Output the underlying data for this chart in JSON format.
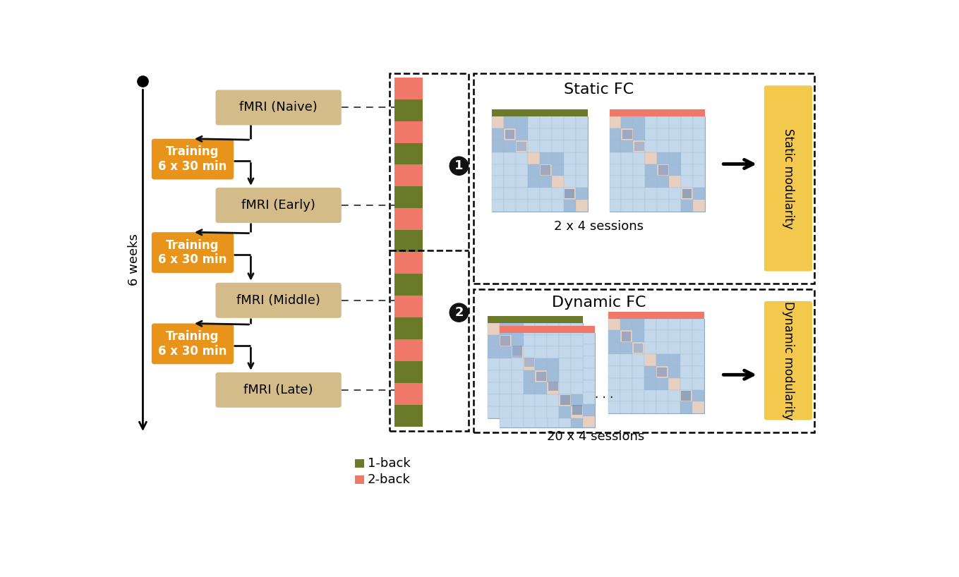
{
  "bg_color": "#ffffff",
  "fmri_box_color": "#d4bc8a",
  "training_box_color": "#e8941a",
  "modularity_box_color": "#f2c94c",
  "fmri_labels": [
    "fMRI (Naive)",
    "fMRI (Early)",
    "fMRI (Middle)",
    "fMRI (Late)"
  ],
  "training_label": "Training\n6 x 30 min",
  "static_fc_title": "Static FC",
  "dynamic_fc_title": "Dynamic FC",
  "static_mod_label": "Static modularity",
  "dynamic_mod_label": "Dynamic modularity",
  "sessions_static": "2 x 4 sessions",
  "sessions_dynamic": "20 x 4 sessions",
  "weeks_label": "6 weeks",
  "legend_1back": "1-back",
  "legend_2back": "2-back",
  "color_1back": "#6b7a28",
  "color_2back": "#f07868",
  "matrix_bg": "#c8ddf0",
  "matrix_line": "#aabfd8",
  "circle_color": "#111111",
  "arrow_color": "#111111",
  "dash_color": "#444444"
}
